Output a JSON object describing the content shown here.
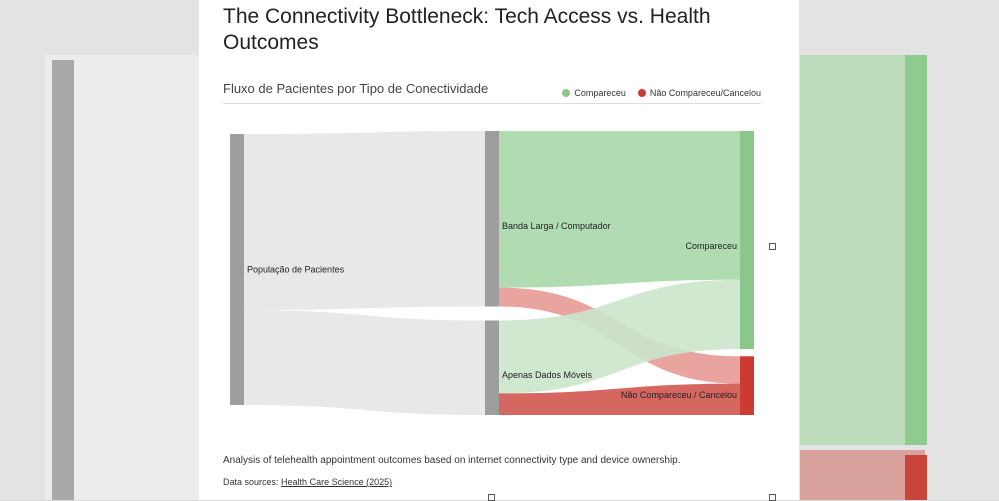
{
  "page": {
    "title": "The Connectivity Bottleneck: Tech Access vs. Health Outcomes",
    "description": "Analysis of telehealth appointment outcomes based on internet connectivity type and device ownership.",
    "sources_label": "Data sources:",
    "sources_link": "Health Care Science (2025)"
  },
  "chart_data": {
    "type": "sankey",
    "title": "Fluxo de Pacientes por Tipo de Conectividade",
    "legend": [
      {
        "label": "Compareceu",
        "color": "#8bc78b"
      },
      {
        "label": "Não Compareceu/Cancelou",
        "color": "#cc3b32"
      }
    ],
    "nodes": [
      {
        "id": "pop",
        "label": "População de Pacientes",
        "color": "#9e9e9e"
      },
      {
        "id": "broad",
        "label": "Banda Larga / Computador",
        "color": "#9e9e9e"
      },
      {
        "id": "mobile",
        "label": "Apenas Dados Móveis",
        "color": "#9e9e9e"
      },
      {
        "id": "attended",
        "label": "Compareceu",
        "color": "#8bc78b"
      },
      {
        "id": "missed",
        "label": "Não Compareceu / Cancelou",
        "color": "#cc3b32"
      }
    ],
    "links": [
      {
        "source": "pop",
        "target": "broad",
        "value": 65,
        "color": "#e6e6e6"
      },
      {
        "source": "pop",
        "target": "mobile",
        "value": 35,
        "color": "#e6e6e6"
      },
      {
        "source": "broad",
        "target": "attended",
        "value": 58,
        "color": "#a8d8a8"
      },
      {
        "source": "broad",
        "target": "missed",
        "value": 7,
        "color": "#e89a96"
      },
      {
        "source": "mobile",
        "target": "attended",
        "value": 27,
        "color": "#cbe6cb"
      },
      {
        "source": "mobile",
        "target": "missed",
        "value": 8,
        "color": "#d0574f"
      }
    ]
  }
}
